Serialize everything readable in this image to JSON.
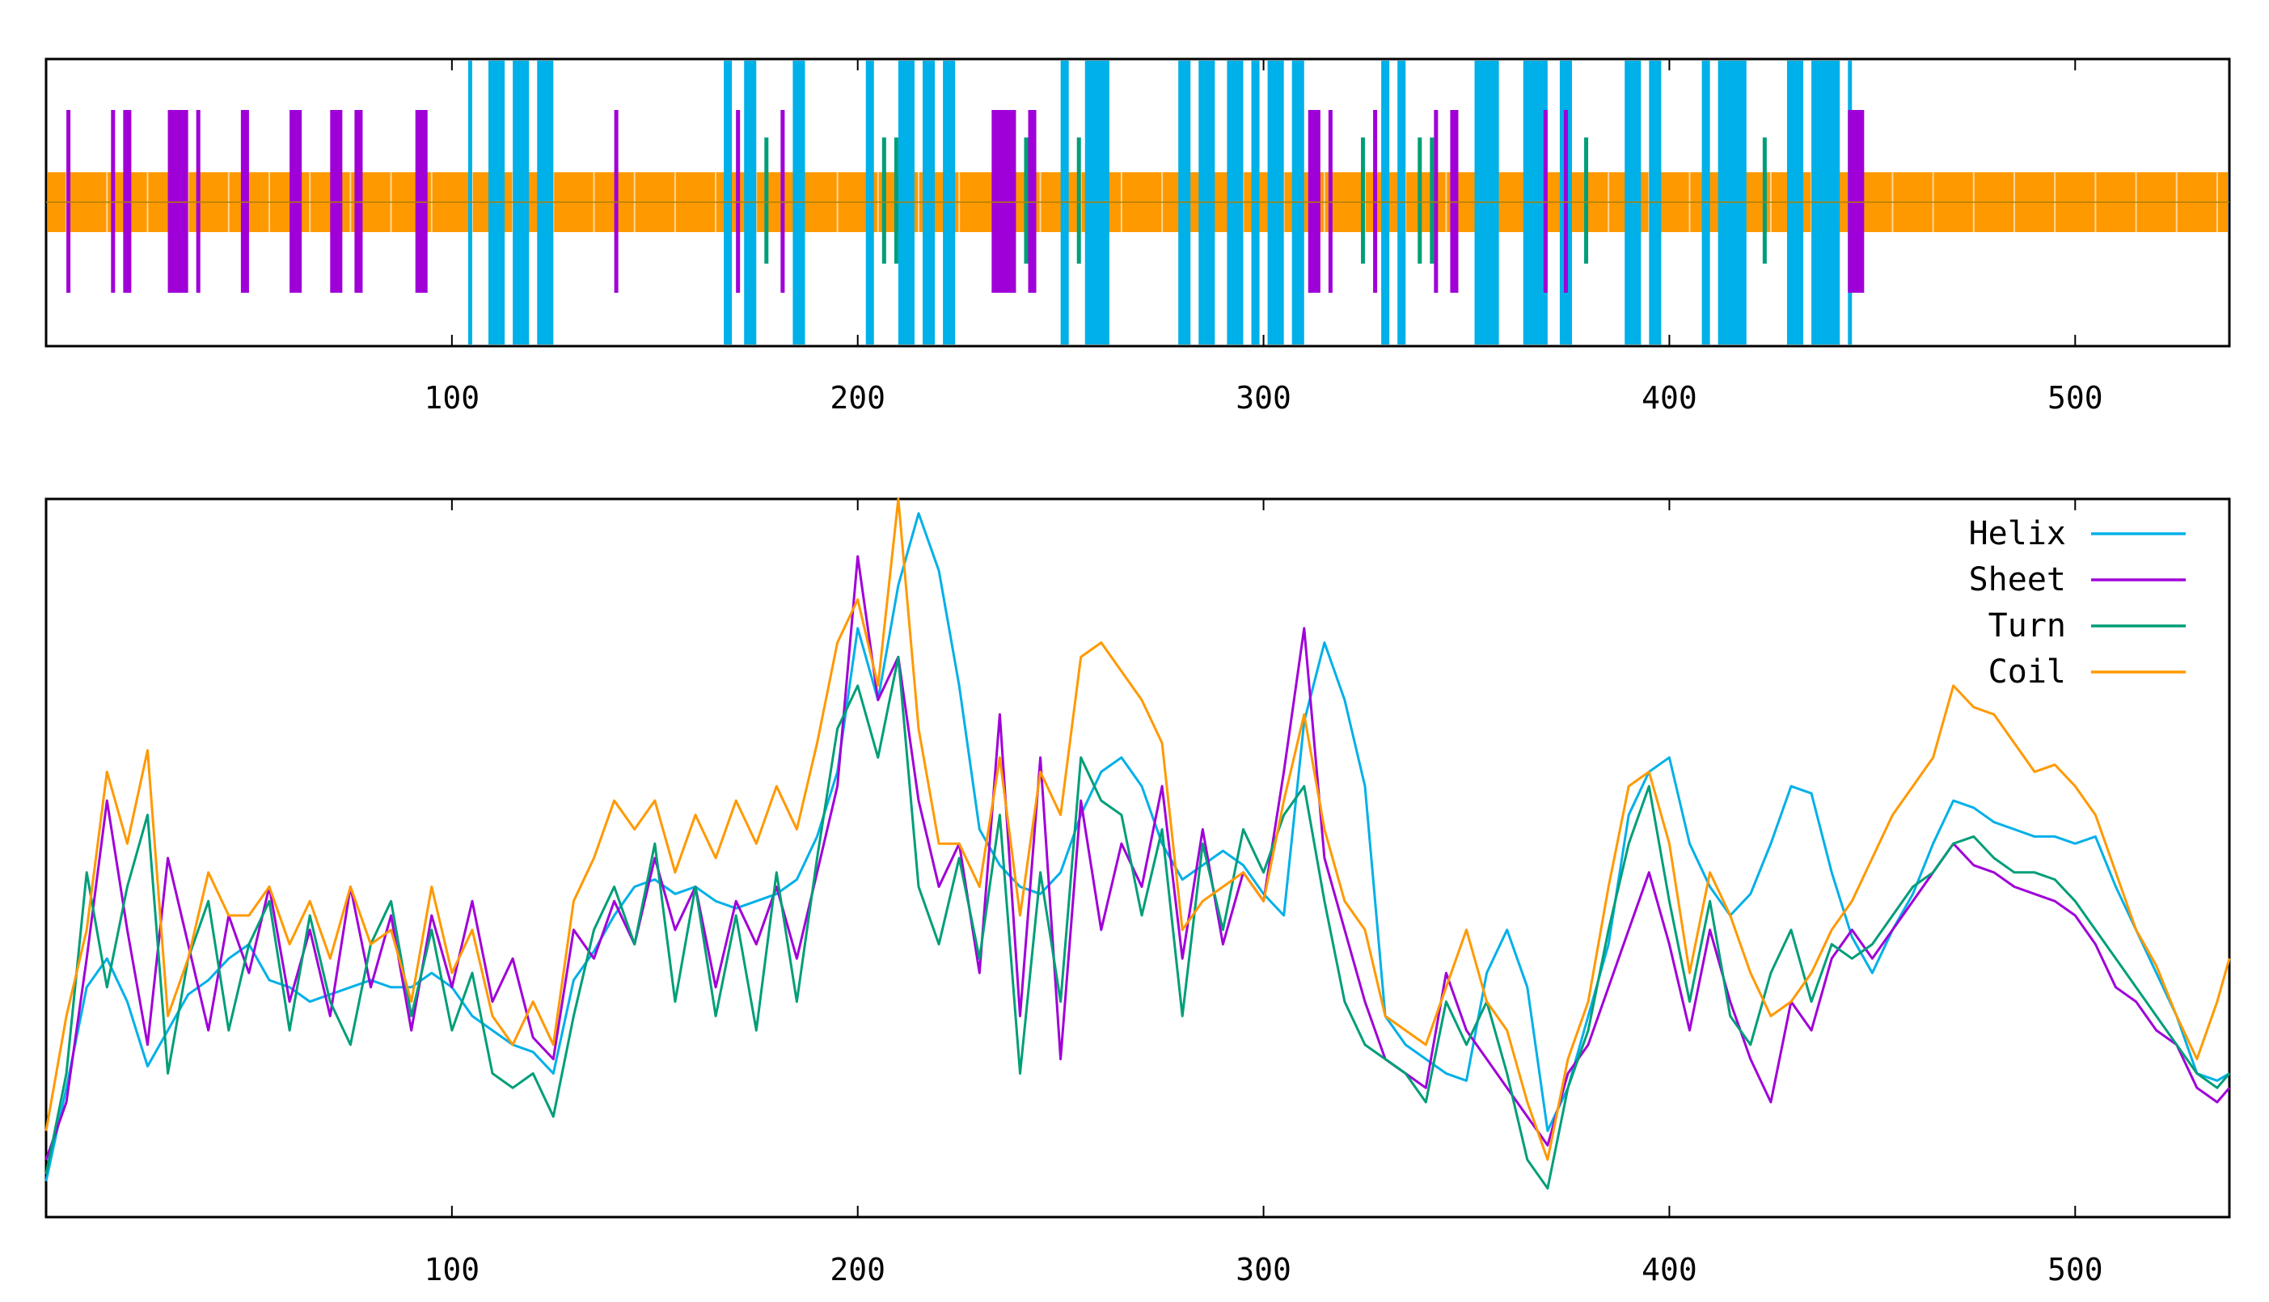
{
  "chart_data": [
    {
      "type": "bar",
      "subtype": "secondary-structure-track",
      "title": "",
      "xlabel": "",
      "ylabel": "",
      "xlim": [
        0,
        538
      ],
      "xticks": [
        "100",
        "200",
        "300",
        "400",
        "500"
      ],
      "grid": false,
      "coil_color": "#FF9900",
      "tracks": [
        {
          "name": "Helix",
          "color": "#00B0E8",
          "level": "full",
          "segments": [
            [
              104,
              105
            ],
            [
              109,
              113
            ],
            [
              115,
              119
            ],
            [
              121,
              125
            ],
            [
              167,
              169
            ],
            [
              172,
              175
            ],
            [
              184,
              187
            ],
            [
              202,
              204
            ],
            [
              210,
              214
            ],
            [
              216,
              219
            ],
            [
              221,
              224
            ],
            [
              250,
              252
            ],
            [
              256,
              262
            ],
            [
              279,
              282
            ],
            [
              284,
              288
            ],
            [
              291,
              295
            ],
            [
              297,
              299
            ],
            [
              301,
              305
            ],
            [
              307,
              310
            ],
            [
              329,
              331
            ],
            [
              333,
              335
            ],
            [
              352,
              358
            ],
            [
              364,
              370
            ],
            [
              373,
              376
            ],
            [
              389,
              393
            ],
            [
              395,
              398
            ],
            [
              408,
              410
            ],
            [
              412,
              419
            ],
            [
              429,
              433
            ],
            [
              435,
              442
            ],
            [
              444,
              445
            ]
          ]
        },
        {
          "name": "Sheet",
          "color": "#A000D8",
          "level": "mid",
          "segments": [
            [
              5,
              6
            ],
            [
              16,
              17
            ],
            [
              19,
              21
            ],
            [
              30,
              35
            ],
            [
              37,
              38
            ],
            [
              48,
              50
            ],
            [
              60,
              63
            ],
            [
              70,
              73
            ],
            [
              76,
              78
            ],
            [
              91,
              94
            ],
            [
              140,
              141
            ],
            [
              170,
              171
            ],
            [
              181,
              182
            ],
            [
              233,
              239
            ],
            [
              242,
              244
            ],
            [
              311,
              314
            ],
            [
              316,
              317
            ],
            [
              327,
              328
            ],
            [
              342,
              343
            ],
            [
              346,
              348
            ],
            [
              369,
              370
            ],
            [
              374,
              375
            ],
            [
              444,
              448
            ]
          ]
        },
        {
          "name": "Turn",
          "color": "#009E78",
          "level": "small",
          "segments": [
            [
              177,
              178
            ],
            [
              206,
              207
            ],
            [
              209,
              210
            ],
            [
              241,
              242
            ],
            [
              254,
              255
            ],
            [
              324,
              325
            ],
            [
              338,
              339
            ],
            [
              341,
              342
            ],
            [
              379,
              380
            ],
            [
              423,
              424
            ]
          ]
        }
      ]
    },
    {
      "type": "line",
      "title": "",
      "xlabel": "",
      "ylabel": "",
      "xlim": [
        0,
        538
      ],
      "ylim": [
        0,
        1
      ],
      "xticks": [
        "100",
        "200",
        "300",
        "400",
        "500"
      ],
      "grid": false,
      "legend_position": "top-right",
      "x": [
        0,
        5,
        10,
        15,
        20,
        25,
        30,
        35,
        40,
        45,
        50,
        55,
        60,
        65,
        70,
        75,
        80,
        85,
        90,
        95,
        100,
        105,
        110,
        115,
        120,
        125,
        130,
        135,
        140,
        145,
        150,
        155,
        160,
        165,
        170,
        175,
        180,
        185,
        190,
        195,
        200,
        205,
        210,
        215,
        220,
        225,
        230,
        235,
        240,
        245,
        250,
        255,
        260,
        265,
        270,
        275,
        280,
        285,
        290,
        295,
        300,
        305,
        310,
        315,
        320,
        325,
        330,
        335,
        340,
        345,
        350,
        355,
        360,
        365,
        370,
        375,
        380,
        385,
        390,
        395,
        400,
        405,
        410,
        415,
        420,
        425,
        430,
        435,
        440,
        445,
        450,
        455,
        460,
        465,
        470,
        475,
        480,
        485,
        490,
        495,
        500,
        505,
        510,
        515,
        520,
        525,
        530,
        535,
        538
      ],
      "series": [
        {
          "name": "Helix",
          "color": "#00B0E8",
          "values": [
            0.05,
            0.18,
            0.32,
            0.36,
            0.3,
            0.21,
            0.26,
            0.31,
            0.33,
            0.36,
            0.38,
            0.33,
            0.32,
            0.3,
            0.31,
            0.32,
            0.33,
            0.32,
            0.32,
            0.34,
            0.32,
            0.28,
            0.26,
            0.24,
            0.23,
            0.2,
            0.33,
            0.37,
            0.42,
            0.46,
            0.47,
            0.45,
            0.46,
            0.44,
            0.43,
            0.44,
            0.45,
            0.47,
            0.53,
            0.62,
            0.82,
            0.72,
            0.88,
            0.98,
            0.9,
            0.74,
            0.54,
            0.49,
            0.46,
            0.45,
            0.48,
            0.56,
            0.62,
            0.64,
            0.6,
            0.52,
            0.47,
            0.49,
            0.51,
            0.49,
            0.45,
            0.42,
            0.69,
            0.8,
            0.72,
            0.6,
            0.28,
            0.24,
            0.22,
            0.2,
            0.19,
            0.34,
            0.4,
            0.32,
            0.12,
            0.18,
            0.28,
            0.38,
            0.56,
            0.62,
            0.64,
            0.52,
            0.46,
            0.42,
            0.45,
            0.52,
            0.6,
            0.59,
            0.48,
            0.39,
            0.34,
            0.4,
            0.45,
            0.52,
            0.58,
            0.57,
            0.55,
            0.54,
            0.53,
            0.53,
            0.52,
            0.53,
            0.46,
            0.4,
            0.34,
            0.28,
            0.2,
            0.19,
            0.2
          ]
        },
        {
          "name": "Sheet",
          "color": "#A000D8",
          "values": [
            0.08,
            0.16,
            0.36,
            0.58,
            0.4,
            0.24,
            0.5,
            0.38,
            0.26,
            0.42,
            0.34,
            0.46,
            0.3,
            0.4,
            0.28,
            0.46,
            0.32,
            0.42,
            0.26,
            0.42,
            0.32,
            0.44,
            0.3,
            0.36,
            0.25,
            0.22,
            0.4,
            0.36,
            0.44,
            0.38,
            0.5,
            0.4,
            0.46,
            0.32,
            0.44,
            0.38,
            0.46,
            0.36,
            0.48,
            0.6,
            0.92,
            0.72,
            0.78,
            0.58,
            0.46,
            0.52,
            0.34,
            0.7,
            0.28,
            0.64,
            0.22,
            0.58,
            0.4,
            0.52,
            0.46,
            0.6,
            0.36,
            0.54,
            0.38,
            0.48,
            0.44,
            0.62,
            0.82,
            0.5,
            0.4,
            0.3,
            0.22,
            0.2,
            0.18,
            0.34,
            0.26,
            0.22,
            0.18,
            0.14,
            0.1,
            0.2,
            0.24,
            0.32,
            0.4,
            0.48,
            0.38,
            0.26,
            0.4,
            0.3,
            0.22,
            0.16,
            0.3,
            0.26,
            0.36,
            0.4,
            0.36,
            0.4,
            0.44,
            0.48,
            0.52,
            0.49,
            0.48,
            0.46,
            0.45,
            0.44,
            0.42,
            0.38,
            0.32,
            0.3,
            0.26,
            0.24,
            0.18,
            0.16,
            0.18
          ]
        },
        {
          "name": "Turn",
          "color": "#009E78",
          "values": [
            0.06,
            0.2,
            0.48,
            0.32,
            0.46,
            0.56,
            0.2,
            0.36,
            0.44,
            0.26,
            0.38,
            0.44,
            0.26,
            0.42,
            0.3,
            0.24,
            0.38,
            0.44,
            0.28,
            0.4,
            0.26,
            0.34,
            0.2,
            0.18,
            0.2,
            0.14,
            0.28,
            0.4,
            0.46,
            0.38,
            0.52,
            0.3,
            0.46,
            0.28,
            0.42,
            0.26,
            0.48,
            0.3,
            0.5,
            0.68,
            0.74,
            0.64,
            0.78,
            0.46,
            0.38,
            0.5,
            0.36,
            0.56,
            0.2,
            0.48,
            0.3,
            0.64,
            0.58,
            0.56,
            0.42,
            0.54,
            0.28,
            0.52,
            0.4,
            0.54,
            0.48,
            0.56,
            0.6,
            0.44,
            0.3,
            0.24,
            0.22,
            0.2,
            0.16,
            0.3,
            0.24,
            0.3,
            0.2,
            0.08,
            0.04,
            0.18,
            0.26,
            0.4,
            0.52,
            0.6,
            0.44,
            0.3,
            0.44,
            0.28,
            0.24,
            0.34,
            0.4,
            0.3,
            0.38,
            0.36,
            0.38,
            0.42,
            0.46,
            0.48,
            0.52,
            0.53,
            0.5,
            0.48,
            0.48,
            0.47,
            0.44,
            0.4,
            0.36,
            0.32,
            0.28,
            0.24,
            0.2,
            0.18,
            0.2
          ]
        },
        {
          "name": "Coil",
          "color": "#FF9900",
          "values": [
            0.12,
            0.28,
            0.4,
            0.62,
            0.52,
            0.65,
            0.28,
            0.36,
            0.48,
            0.42,
            0.42,
            0.46,
            0.38,
            0.44,
            0.36,
            0.46,
            0.38,
            0.4,
            0.3,
            0.46,
            0.34,
            0.4,
            0.28,
            0.24,
            0.3,
            0.24,
            0.44,
            0.5,
            0.58,
            0.54,
            0.58,
            0.48,
            0.56,
            0.5,
            0.58,
            0.52,
            0.6,
            0.54,
            0.66,
            0.8,
            0.86,
            0.74,
            1.0,
            0.68,
            0.52,
            0.52,
            0.46,
            0.64,
            0.42,
            0.62,
            0.56,
            0.78,
            0.8,
            0.76,
            0.72,
            0.66,
            0.4,
            0.44,
            0.46,
            0.48,
            0.44,
            0.58,
            0.7,
            0.54,
            0.44,
            0.4,
            0.28,
            0.26,
            0.24,
            0.32,
            0.4,
            0.3,
            0.26,
            0.16,
            0.08,
            0.22,
            0.3,
            0.46,
            0.6,
            0.62,
            0.52,
            0.34,
            0.48,
            0.42,
            0.34,
            0.28,
            0.3,
            0.34,
            0.4,
            0.44,
            0.5,
            0.56,
            0.6,
            0.64,
            0.74,
            0.71,
            0.7,
            0.66,
            0.62,
            0.63,
            0.6,
            0.56,
            0.48,
            0.4,
            0.35,
            0.28,
            0.22,
            0.3,
            0.36
          ]
        }
      ]
    }
  ]
}
